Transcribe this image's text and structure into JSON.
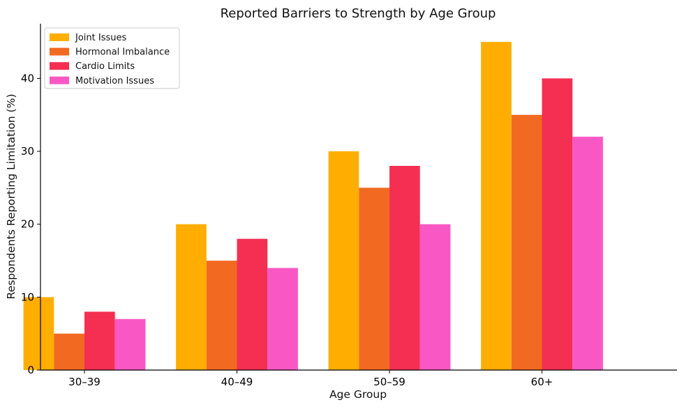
{
  "chart_data": {
    "type": "bar",
    "title": "Reported Barriers to Strength by Age Group",
    "xlabel": "Age Group",
    "ylabel": "Respondents Reporting Limitation (%)",
    "categories": [
      "30–39",
      "40–49",
      "50–59",
      "60+"
    ],
    "series": [
      {
        "name": "Joint Issues",
        "color": "#FFAE00",
        "values": [
          10,
          20,
          30,
          45
        ]
      },
      {
        "name": "Hormonal Imbalance",
        "color": "#F26A22",
        "values": [
          5,
          15,
          25,
          35
        ]
      },
      {
        "name": "Cardio Limits",
        "color": "#F42F52",
        "values": [
          8,
          18,
          28,
          40
        ]
      },
      {
        "name": "Motivation Issues",
        "color": "#F958C4",
        "values": [
          7,
          14,
          20,
          32
        ]
      }
    ],
    "ylim": [
      0,
      47.5
    ],
    "yticks": [
      0,
      10,
      20,
      30,
      40
    ],
    "grid": false,
    "legend_position": "top-left"
  }
}
